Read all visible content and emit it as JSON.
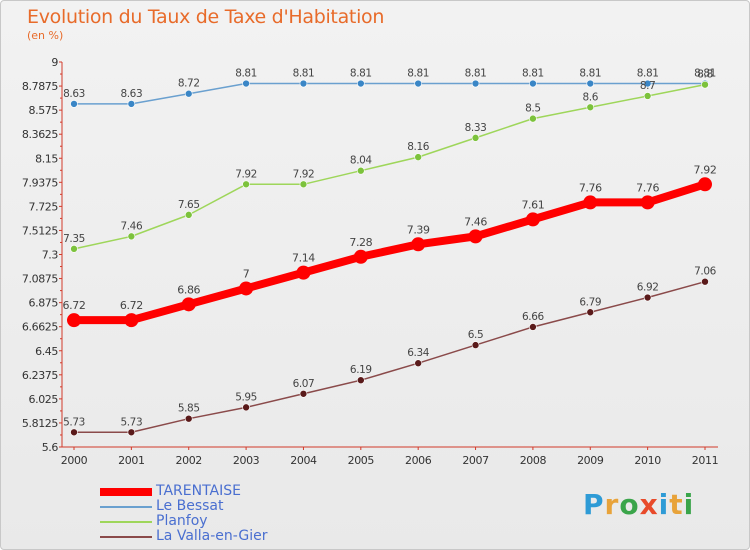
{
  "title": "Evolution du Taux de Taxe d'Habitation",
  "subtitle": "(en %)",
  "logo": {
    "text": "Proxiti",
    "letters": [
      {
        "ch": "P",
        "color": "#2e9bd6"
      },
      {
        "ch": "r",
        "color": "#e8a33a"
      },
      {
        "ch": "o",
        "color": "#3aa54a"
      },
      {
        "ch": "x",
        "color": "#e84a2a"
      },
      {
        "ch": "i",
        "color": "#2e9bd6"
      },
      {
        "ch": "t",
        "color": "#e8a33a"
      },
      {
        "ch": "i",
        "color": "#3aa54a"
      }
    ]
  },
  "chart_data": {
    "type": "line",
    "title": "Evolution du Taux de Taxe d'Habitation",
    "ylabel": "(en %)",
    "x": [
      "2000",
      "2001",
      "2002",
      "2003",
      "2004",
      "2005",
      "2006",
      "2007",
      "2008",
      "2009",
      "2010",
      "2011"
    ],
    "ylim": [
      5.6,
      9
    ],
    "yticks": [
      "9",
      "8.7875",
      "8.575",
      "8.3625",
      "8.15",
      "7.9375",
      "7.725",
      "7.5125",
      "7.3",
      "7.0875",
      "6.875",
      "6.6625",
      "6.45",
      "6.2375",
      "6.025",
      "5.8125",
      "5.6"
    ],
    "grid": false,
    "legend_position": "bottom-left",
    "series": [
      {
        "name": "TARENTAISE",
        "color": "#ff0000",
        "line_width": 8,
        "point_radius": 7,
        "point_color": "#ff0000",
        "values": [
          6.72,
          6.72,
          6.86,
          7,
          7.14,
          7.28,
          7.39,
          7.46,
          7.61,
          7.76,
          7.76,
          7.92
        ],
        "labels": [
          "6.72",
          "6.72",
          "6.86",
          "7",
          "7.14",
          "7.28",
          "7.39",
          "7.46",
          "7.61",
          "7.76",
          "7.76",
          "7.92"
        ]
      },
      {
        "name": "Le Bessat",
        "color": "#6aa0cf",
        "line_width": 1.5,
        "point_radius": 3.5,
        "point_color": "#3a86c6",
        "values": [
          8.63,
          8.63,
          8.72,
          8.81,
          8.81,
          8.81,
          8.81,
          8.81,
          8.81,
          8.81,
          8.81,
          8.81
        ],
        "labels": [
          "8.63",
          "8.63",
          "8.72",
          "8.81",
          "8.81",
          "8.81",
          "8.81",
          "8.81",
          "8.81",
          "8.81",
          "8.81",
          "8.81"
        ]
      },
      {
        "name": "Planfoy",
        "color": "#9ed65a",
        "line_width": 1.5,
        "point_radius": 3.5,
        "point_color": "#7cc23c",
        "values": [
          7.35,
          7.46,
          7.65,
          7.92,
          7.92,
          8.04,
          8.16,
          8.33,
          8.5,
          8.6,
          8.7,
          8.8
        ],
        "labels": [
          "7.35",
          "7.46",
          "7.65",
          "7.92",
          "7.92",
          "8.04",
          "8.16",
          "8.33",
          "8.5",
          "8.6",
          "8.7",
          "8.8"
        ]
      },
      {
        "name": "La Valla-en-Gier",
        "color": "#8a4a4a",
        "line_width": 1.5,
        "point_radius": 3.5,
        "point_color": "#5a1a1a",
        "values": [
          5.73,
          5.73,
          5.85,
          5.95,
          6.07,
          6.19,
          6.34,
          6.5,
          6.66,
          6.79,
          6.92,
          7.06
        ],
        "labels": [
          "5.73",
          "5.73",
          "5.85",
          "5.95",
          "6.07",
          "6.19",
          "6.34",
          "6.5",
          "6.66",
          "6.79",
          "6.92",
          "7.06"
        ]
      }
    ]
  }
}
